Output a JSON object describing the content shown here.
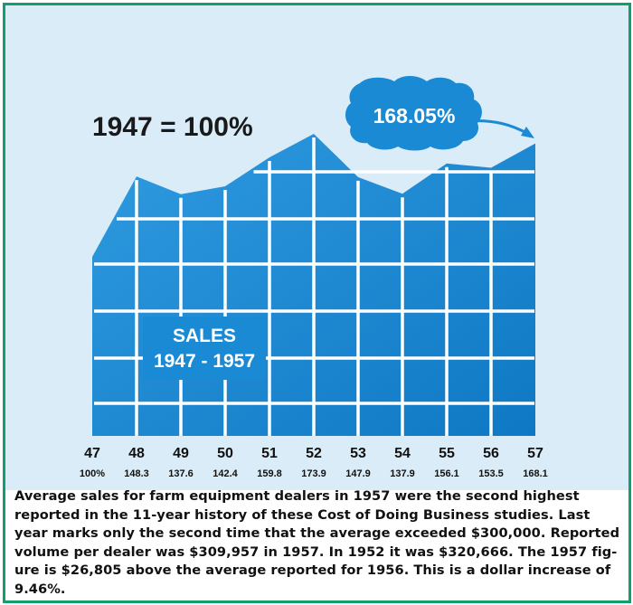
{
  "chart_data": {
    "type": "area",
    "heading": "1947 = 100%",
    "callout": "168.05%",
    "title_lines": [
      "SALES",
      "1947 - 1957"
    ],
    "categories": [
      "47",
      "48",
      "49",
      "50",
      "51",
      "52",
      "53",
      "54",
      "55",
      "56",
      "57"
    ],
    "values": [
      100,
      148.3,
      137.6,
      142.4,
      159.8,
      173.9,
      147.9,
      137.9,
      156.1,
      153.5,
      168.1
    ],
    "value_labels": [
      "100%",
      "148.3",
      "137.6",
      "142.4",
      "159.8",
      "173.9",
      "147.9",
      "137.9",
      "156.1",
      "153.5",
      "168.1"
    ],
    "fill_color": "#1a8ad4",
    "grid": true
  },
  "caption_lines": [
    "Average sales for farm equipment dealers in 1957 were the second highest",
    "reported in the 11-year history of these Cost of Doing Business studies. Last",
    "year marks only the second time that the average exceeded $300,000. Reported",
    "volume per dealer was $309,957 in 1957. In 1952 it was $320,666. The 1957 fig-",
    "ure is $26,805 above the average reported for 1956. This is a dollar increase of",
    "9.46%."
  ]
}
